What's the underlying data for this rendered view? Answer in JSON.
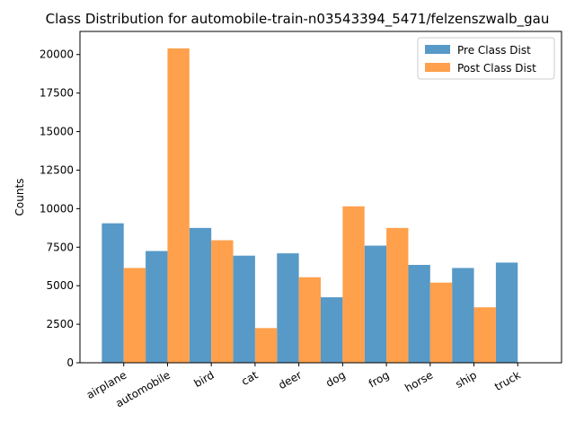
{
  "chart_data": {
    "type": "bar",
    "title": "Class Distribution for automobile-train-n03543394_5471/felzenszwalb_gau",
    "xlabel": "",
    "ylabel": "Counts",
    "categories": [
      "airplane",
      "automobile",
      "bird",
      "cat",
      "deer",
      "dog",
      "frog",
      "horse",
      "ship",
      "truck"
    ],
    "series": [
      {
        "name": "Pre Class Dist",
        "color": "#5799c7",
        "values": [
          9050,
          7250,
          8750,
          6950,
          7100,
          4250,
          7600,
          6350,
          6150,
          6500
        ]
      },
      {
        "name": "Post Class Dist",
        "color": "#ffa04c",
        "values": [
          6150,
          20400,
          7950,
          2250,
          5550,
          10150,
          8750,
          5200,
          3600,
          0
        ]
      }
    ],
    "ylim": [
      0,
      21500
    ],
    "yticks": [
      0,
      2500,
      5000,
      7500,
      10000,
      12500,
      15000,
      17500,
      20000
    ],
    "xtick_rotation_deg": 30,
    "grid": false,
    "legend_position": "top-right"
  }
}
